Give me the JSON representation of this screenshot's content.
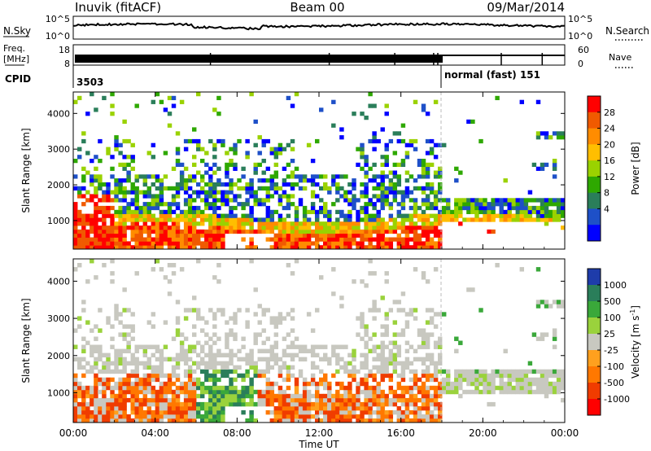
{
  "header": {
    "station": "Inuvik (fitACF)",
    "beam": "Beam 00",
    "date": "09/Mar/2014"
  },
  "top_panels": {
    "nsky_label": "N.Sky",
    "nsky_ticks": [
      "10^5",
      "10^0"
    ],
    "nsearch_label": "N.Search",
    "nsearch_ticks": [
      "10^5",
      "10^0"
    ],
    "freq_label": "Freq.",
    "freq_unit": "[MHz]",
    "freq_ticks": [
      "18",
      "8"
    ],
    "nave_label": "Nave",
    "nave_ticks": [
      "60",
      "0"
    ],
    "cpid_label": "CPID",
    "cpid_segments": [
      {
        "text": "3503"
      },
      {
        "text": "normal (fast) 151"
      }
    ]
  },
  "chart_data": [
    {
      "type": "heatmap",
      "ylabel": "Slant Range [km]",
      "y_ticks": [
        1000,
        2000,
        3000,
        4000
      ],
      "ylim": [
        200,
        4600
      ],
      "xlim": [
        0,
        24
      ],
      "colorbar": {
        "label": "Power [dB]",
        "ticks": [
          "28",
          "24",
          "20",
          "16",
          "12",
          "8",
          "4"
        ],
        "colors": [
          "#ff0000",
          "#f05a00",
          "#ff8c00",
          "#ffbe00",
          "#9ad200",
          "#2ea800",
          "#2a7e5a",
          "#1e50c8",
          "#0000ff"
        ]
      }
    },
    {
      "type": "heatmap",
      "ylabel": "Slant Range [km]",
      "y_ticks": [
        1000,
        2000,
        3000,
        4000
      ],
      "ylim": [
        200,
        4600
      ],
      "xlim": [
        0,
        24
      ],
      "colorbar": {
        "label": "Velocity [m s-1]",
        "label_main": "Velocity",
        "label_unit": "[m s",
        "label_sup": "-1",
        "label_close": "]",
        "ticks": [
          "1000",
          "500",
          "100",
          "25",
          "-25",
          "-100",
          "-500",
          "-1000"
        ],
        "colors": [
          "#1e3caa",
          "#2a7e5a",
          "#3aa83a",
          "#9ad23c",
          "#c8c8c0",
          "#ffa01e",
          "#ff7800",
          "#f03c00",
          "#ff0000"
        ]
      }
    }
  ],
  "time_axis": {
    "label": "Time UT",
    "ticks": [
      "00:00",
      "04:00",
      "08:00",
      "12:00",
      "16:00",
      "20:00",
      "00:00"
    ]
  }
}
